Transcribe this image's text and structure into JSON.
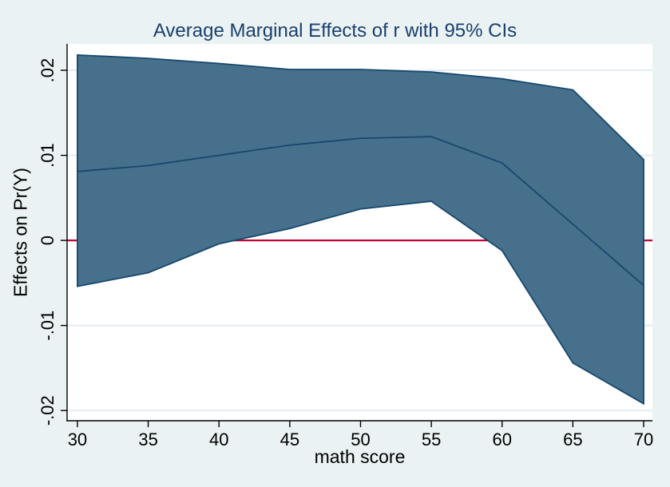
{
  "chart_data": {
    "type": "area",
    "title": "Average Marginal Effects of r with 95% CIs",
    "xlabel": "math score",
    "ylabel": "Effects on Pr(Y)",
    "x": [
      30,
      35,
      40,
      45,
      50,
      55,
      60,
      65,
      70
    ],
    "series": [
      {
        "name": "95% CI upper bound",
        "values": [
          0.0218,
          0.0214,
          0.0208,
          0.0201,
          0.0201,
          0.0198,
          0.019,
          0.0177,
          0.0095
        ]
      },
      {
        "name": "Average marginal effect",
        "values": [
          0.0081,
          0.0088,
          0.01,
          0.0112,
          0.012,
          0.0122,
          0.0091,
          0.0019,
          -0.0053
        ]
      },
      {
        "name": "95% CI lower bound",
        "values": [
          -0.0054,
          -0.0038,
          -0.0004,
          0.0014,
          0.0037,
          0.0046,
          -0.0012,
          -0.0144,
          -0.0192
        ]
      }
    ],
    "reference_line_y": 0,
    "x_ticks": [
      30,
      35,
      40,
      45,
      50,
      55,
      60,
      65,
      70
    ],
    "y_ticks": [
      {
        "value": 0.02,
        "label": ".02"
      },
      {
        "value": 0.01,
        "label": ".01"
      },
      {
        "value": 0,
        "label": "0"
      },
      {
        "value": -0.01,
        "label": "-.01"
      },
      {
        "value": -0.02,
        "label": "-.02"
      }
    ],
    "xlim": [
      29.27,
      70.62
    ],
    "ylim": [
      -0.0212,
      0.0231
    ],
    "grid": true,
    "legend": false
  },
  "colors": {
    "background": "#eaf2f3",
    "plot_background": "#ffffff",
    "grid": "#e3edf0",
    "axis": "#000000",
    "tick_text": "#000000",
    "title_text": "#1a3f6e",
    "band_fill": "#46708c",
    "band_edge": "#17486d",
    "line": "#17486d",
    "zero_line": "#c10534"
  }
}
